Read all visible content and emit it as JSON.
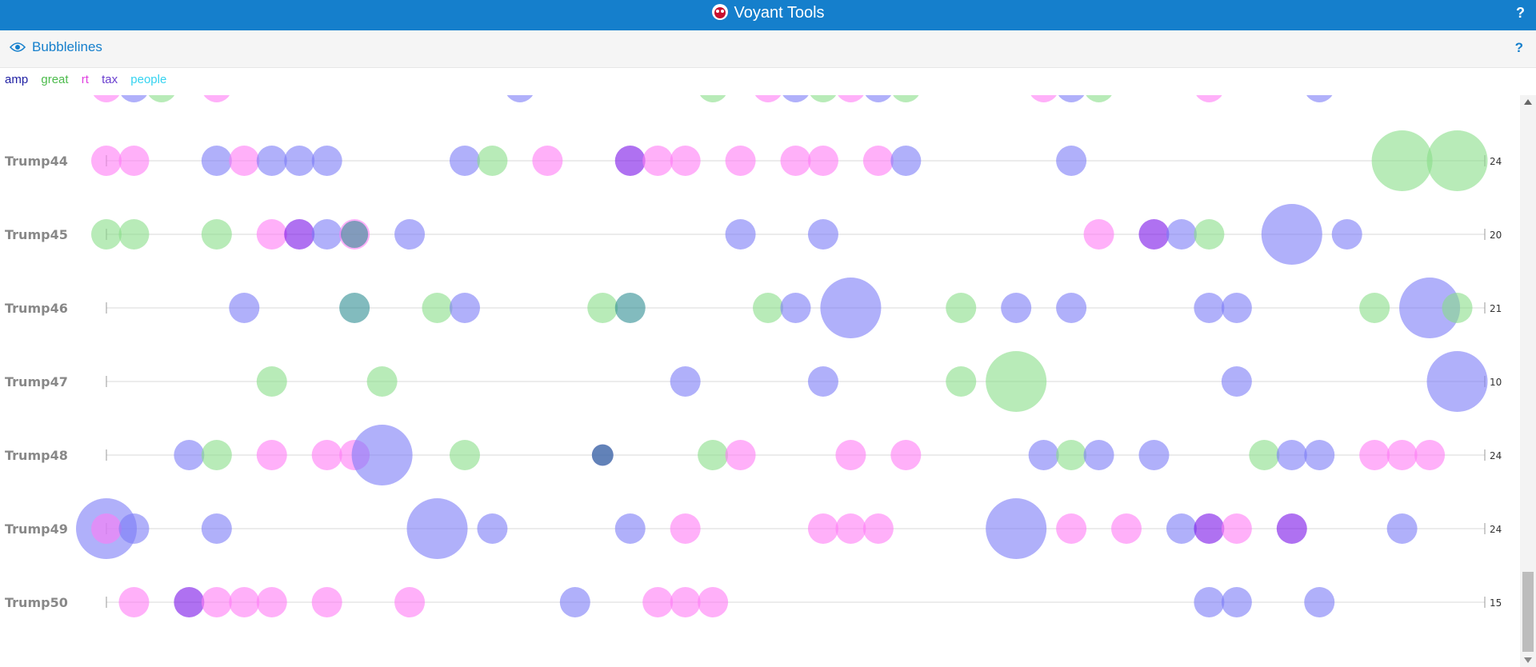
{
  "app": {
    "title": "Voyant Tools",
    "help": "?"
  },
  "panel": {
    "title": "Bubblelines",
    "help": "?"
  },
  "legend": [
    {
      "term": "amp",
      "color": "#1f1fa3"
    },
    {
      "term": "great",
      "color": "#4cbb4c"
    },
    {
      "term": "rt",
      "color": "#e040e0"
    },
    {
      "term": "tax",
      "color": "#6a3fcf"
    },
    {
      "term": "people",
      "color": "#35d3f0"
    }
  ],
  "chart_data": {
    "type": "scatter",
    "term_colors": {
      "amp": "#7b7bf7",
      "great": "#88dd88",
      "rt": "#ff7cf5",
      "tax": "#7a12e8",
      "people": "#2e8d92"
    },
    "docs": [
      {
        "name": "Trump44",
        "count": "24",
        "bubbles": [
          [
            0,
            "rt",
            1
          ],
          [
            2,
            "rt",
            1
          ],
          [
            8,
            "amp",
            1
          ],
          [
            10,
            "rt",
            1
          ],
          [
            12,
            "amp",
            1
          ],
          [
            14,
            "amp",
            1
          ],
          [
            16,
            "amp",
            1
          ],
          [
            26,
            "amp",
            1
          ],
          [
            28,
            "great",
            1
          ],
          [
            32,
            "rt",
            1
          ],
          [
            38,
            "tax",
            1
          ],
          [
            40,
            "rt",
            1
          ],
          [
            42,
            "rt",
            1
          ],
          [
            46,
            "rt",
            1
          ],
          [
            50,
            "rt",
            1
          ],
          [
            52,
            "rt",
            1
          ],
          [
            56,
            "rt",
            1
          ],
          [
            58,
            "amp",
            1
          ],
          [
            70,
            "amp",
            1
          ],
          [
            94,
            "great",
            4
          ],
          [
            98,
            "great",
            4
          ]
        ]
      },
      {
        "name": "Trump45",
        "count": "20",
        "bubbles": [
          [
            0,
            "great",
            1
          ],
          [
            2,
            "great",
            1
          ],
          [
            8,
            "great",
            1
          ],
          [
            12,
            "rt",
            1
          ],
          [
            14,
            "tax",
            1
          ],
          [
            16,
            "amp",
            1
          ],
          [
            18,
            "rt",
            1
          ],
          [
            18,
            "people",
            0.8
          ],
          [
            22,
            "amp",
            1
          ],
          [
            46,
            "amp",
            1
          ],
          [
            52,
            "amp",
            1
          ],
          [
            72,
            "rt",
            1
          ],
          [
            76,
            "tax",
            1
          ],
          [
            78,
            "amp",
            1
          ],
          [
            80,
            "great",
            1
          ],
          [
            86,
            "amp",
            4
          ],
          [
            90,
            "amp",
            1
          ]
        ]
      },
      {
        "name": "Trump46",
        "count": "21",
        "bubbles": [
          [
            10,
            "amp",
            1
          ],
          [
            18,
            "people",
            1
          ],
          [
            24,
            "great",
            1
          ],
          [
            26,
            "amp",
            1
          ],
          [
            36,
            "great",
            1
          ],
          [
            38,
            "people",
            1
          ],
          [
            48,
            "great",
            1
          ],
          [
            50,
            "amp",
            1
          ],
          [
            54,
            "amp",
            4
          ],
          [
            62,
            "great",
            1
          ],
          [
            66,
            "amp",
            1
          ],
          [
            70,
            "amp",
            1
          ],
          [
            80,
            "amp",
            1
          ],
          [
            82,
            "amp",
            1
          ],
          [
            92,
            "great",
            1
          ],
          [
            96,
            "amp",
            4
          ],
          [
            98,
            "great",
            1
          ]
        ]
      },
      {
        "name": "Trump47",
        "count": "10",
        "bubbles": [
          [
            12,
            "great",
            1
          ],
          [
            20,
            "great",
            1
          ],
          [
            42,
            "amp",
            1
          ],
          [
            52,
            "amp",
            1
          ],
          [
            62,
            "great",
            1
          ],
          [
            66,
            "great",
            4
          ],
          [
            82,
            "amp",
            1
          ],
          [
            98,
            "amp",
            4
          ]
        ]
      },
      {
        "name": "Trump48",
        "count": "24",
        "bubbles": [
          [
            6,
            "amp",
            1
          ],
          [
            8,
            "great",
            1
          ],
          [
            12,
            "rt",
            1
          ],
          [
            16,
            "rt",
            1
          ],
          [
            18,
            "rt",
            1
          ],
          [
            20,
            "amp",
            4
          ],
          [
            26,
            "great",
            1
          ],
          [
            36,
            "tax",
            0.5
          ],
          [
            36,
            "people",
            0.5
          ],
          [
            44,
            "great",
            1
          ],
          [
            46,
            "rt",
            1
          ],
          [
            54,
            "rt",
            1
          ],
          [
            58,
            "rt",
            1
          ],
          [
            68,
            "amp",
            1
          ],
          [
            70,
            "great",
            1
          ],
          [
            72,
            "amp",
            1
          ],
          [
            76,
            "amp",
            1
          ],
          [
            84,
            "great",
            1
          ],
          [
            86,
            "amp",
            1
          ],
          [
            88,
            "amp",
            1
          ],
          [
            92,
            "rt",
            1
          ],
          [
            94,
            "rt",
            1
          ],
          [
            96,
            "rt",
            1
          ]
        ]
      },
      {
        "name": "Trump49",
        "count": "24",
        "bubbles": [
          [
            0,
            "amp",
            4
          ],
          [
            0,
            "rt",
            1
          ],
          [
            2,
            "amp",
            1
          ],
          [
            8,
            "amp",
            1
          ],
          [
            24,
            "amp",
            4
          ],
          [
            28,
            "amp",
            1
          ],
          [
            38,
            "amp",
            1
          ],
          [
            42,
            "rt",
            1
          ],
          [
            52,
            "rt",
            1
          ],
          [
            54,
            "rt",
            1
          ],
          [
            56,
            "rt",
            1
          ],
          [
            66,
            "amp",
            4
          ],
          [
            70,
            "rt",
            1
          ],
          [
            74,
            "rt",
            1
          ],
          [
            78,
            "amp",
            1
          ],
          [
            80,
            "tax",
            1
          ],
          [
            82,
            "rt",
            1
          ],
          [
            86,
            "tax",
            1
          ],
          [
            94,
            "amp",
            1
          ]
        ]
      },
      {
        "name": "Trump50",
        "count": "15",
        "bubbles": [
          [
            2,
            "rt",
            1
          ],
          [
            6,
            "tax",
            1
          ],
          [
            8,
            "rt",
            1
          ],
          [
            10,
            "rt",
            1
          ],
          [
            12,
            "rt",
            1
          ],
          [
            16,
            "rt",
            1
          ],
          [
            22,
            "rt",
            1
          ],
          [
            34,
            "amp",
            1
          ],
          [
            40,
            "rt",
            1
          ],
          [
            42,
            "rt",
            1
          ],
          [
            44,
            "rt",
            1
          ],
          [
            80,
            "amp",
            1
          ],
          [
            82,
            "amp",
            1
          ],
          [
            88,
            "amp",
            1
          ]
        ]
      }
    ]
  }
}
